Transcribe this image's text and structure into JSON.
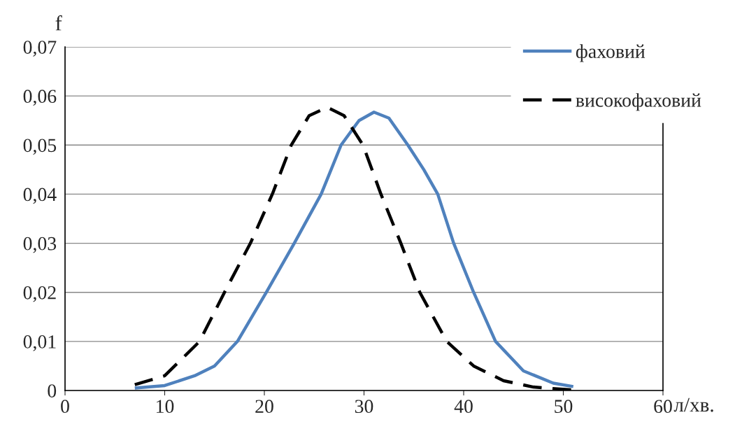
{
  "chart_data": {
    "type": "line",
    "ylabel": "f",
    "xlabel": "л/хв.",
    "xlim": [
      0,
      60
    ],
    "xticks": [
      0,
      10,
      20,
      30,
      40,
      50,
      60
    ],
    "ylim": [
      0,
      0.07
    ],
    "yticks": [
      {
        "value": 0,
        "label": "0"
      },
      {
        "value": 0.01,
        "label": "0,01"
      },
      {
        "value": 0.02,
        "label": "0,02"
      },
      {
        "value": 0.03,
        "label": "0,03"
      },
      {
        "value": 0.04,
        "label": "0,04"
      },
      {
        "value": 0.05,
        "label": "0,05"
      },
      {
        "value": 0.06,
        "label": "0,06"
      },
      {
        "value": 0.07,
        "label": "0,07"
      }
    ],
    "grid": "y",
    "legend": "top right",
    "marker": "none",
    "series": [
      {
        "name": "фаховий",
        "color": "#4f81bd",
        "line_style": "solid",
        "x": [
          7,
          10,
          13,
          15,
          17.3,
          20.2,
          23,
          25.7,
          27.7,
          29.5,
          31,
          32.5,
          34.4,
          36,
          37.4,
          39,
          41,
          43.2,
          46,
          49,
          51
        ],
        "values": [
          0.0005,
          0.001,
          0.003,
          0.005,
          0.01,
          0.02,
          0.03,
          0.04,
          0.05,
          0.055,
          0.0567,
          0.0555,
          0.05,
          0.045,
          0.04,
          0.03,
          0.02,
          0.01,
          0.004,
          0.0015,
          0.0008
        ]
      },
      {
        "name": "високофаховий",
        "color": "#000000",
        "line_style": "dashed",
        "x": [
          7,
          10,
          13.5,
          16,
          18.6,
          20.8,
          22.7,
          24.5,
          26.3,
          28,
          29.9,
          31.7,
          33.7,
          35.6,
          38.3,
          41,
          44,
          47,
          51
        ],
        "values": [
          0.0012,
          0.003,
          0.01,
          0.02,
          0.03,
          0.04,
          0.05,
          0.056,
          0.0577,
          0.056,
          0.05,
          0.04,
          0.03,
          0.02,
          0.01,
          0.005,
          0.002,
          0.0007,
          0.0001
        ]
      }
    ]
  }
}
